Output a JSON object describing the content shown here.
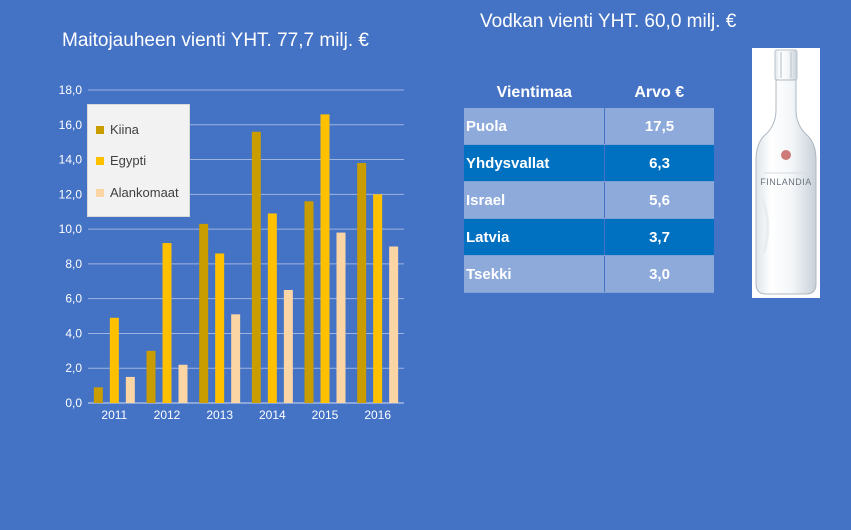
{
  "milk": {
    "title": "Maitojauheen vienti  YHT. 77,7 milj. €"
  },
  "vodka": {
    "title": "Vodkan vienti  YHT. 60,0 milj. €",
    "headers": [
      "Vientimaa",
      "Arvo €"
    ],
    "rows": [
      {
        "country": "Puola",
        "value": "17,5"
      },
      {
        "country": "Yhdysvallat",
        "value": "6,3"
      },
      {
        "country": "Israel",
        "value": "5,6"
      },
      {
        "country": "Latvia",
        "value": "3,7"
      },
      {
        "country": "Tsekki",
        "value": "3,0"
      }
    ],
    "bottle_label": "FINLANDIA"
  },
  "chart_data": {
    "type": "bar",
    "title": "Maitojauheen vienti  YHT. 77,7 milj. €",
    "categories": [
      "2011",
      "2012",
      "2013",
      "2014",
      "2015",
      "2016"
    ],
    "series": [
      {
        "name": "Kiina",
        "color": "#c99c00",
        "values": [
          0.9,
          3.0,
          10.3,
          15.6,
          11.6,
          13.8
        ]
      },
      {
        "name": "Egypti",
        "color": "#ffc000",
        "values": [
          4.9,
          9.2,
          8.6,
          10.9,
          16.6,
          12.0
        ]
      },
      {
        "name": "Alankomaat",
        "color": "#fcd5a4",
        "values": [
          1.5,
          2.2,
          5.1,
          6.5,
          9.8,
          9.0
        ]
      }
    ],
    "yticks": [
      "0,0",
      "2,0",
      "4,0",
      "6,0",
      "8,0",
      "10,0",
      "12,0",
      "14,0",
      "16,0",
      "18,0"
    ],
    "ylim": [
      0,
      18
    ],
    "grid": true,
    "legend_position": "top-left"
  }
}
